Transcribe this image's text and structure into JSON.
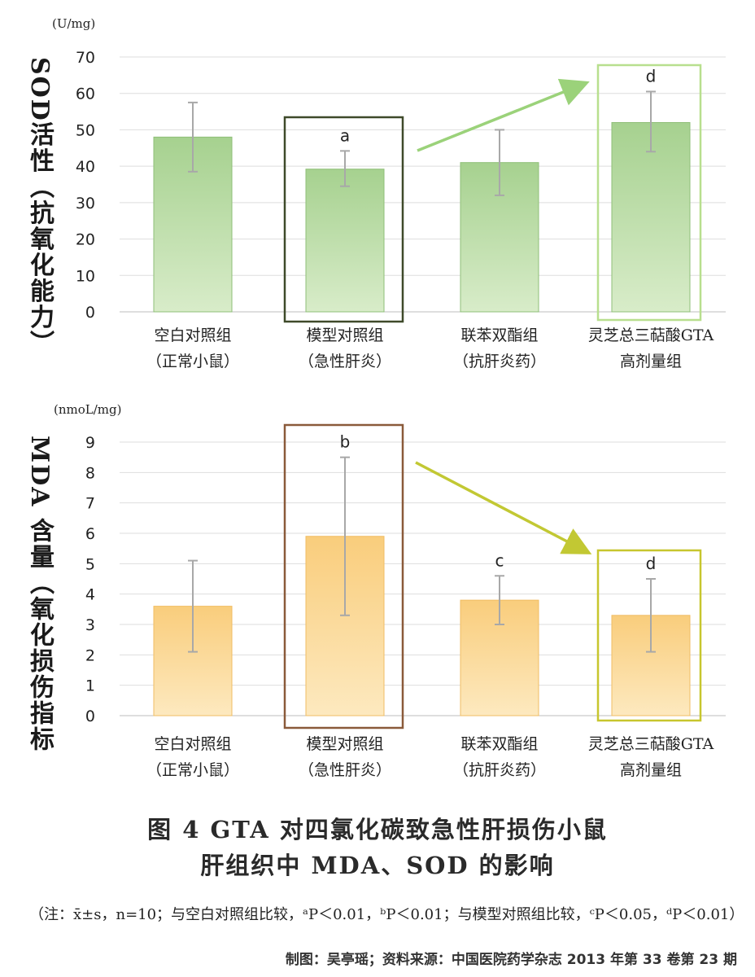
{
  "chart_data": [
    {
      "type": "bar",
      "ylabel": "SOD活性（抗氧化能力）",
      "unit": "(U/mg)",
      "ylim": [
        0,
        70
      ],
      "yticks": [
        "0",
        "10",
        "20",
        "30",
        "40",
        "50",
        "60",
        "70"
      ],
      "categories": [
        [
          "空白对照组",
          "（正常小鼠）"
        ],
        [
          "模型对照组",
          "（急性肝炎）"
        ],
        [
          "联苯双酯组",
          "（抗肝炎药）"
        ],
        [
          "灵芝总三萜酸GTA",
          "高剂量组"
        ]
      ],
      "values": [
        48,
        39.2,
        41,
        52
      ],
      "err_low": [
        38.5,
        34.5,
        32,
        44
      ],
      "err_high": [
        57.5,
        44.2,
        50,
        60.5
      ],
      "annotations": [
        "",
        "a",
        "",
        "d"
      ],
      "highlight": [
        1,
        3
      ],
      "grid": true,
      "colors": {
        "bar_top": "#a6d18f",
        "bar_bottom": "#d8ecc9",
        "bar_border": "#8fbf78",
        "box_model": "#3f4a2a",
        "box_gta": "#b8df8e",
        "arrow": "#9bd27a",
        "error": "#a8a8a8"
      }
    },
    {
      "type": "bar",
      "ylabel": "MDA 含量（氧化损伤指标",
      "unit": "(nmoL/mg)",
      "ylim": [
        0,
        9
      ],
      "yticks": [
        "0",
        "1",
        "2",
        "3",
        "4",
        "5",
        "6",
        "7",
        "8",
        "9"
      ],
      "categories": [
        [
          "空白对照组",
          "（正常小鼠）"
        ],
        [
          "模型对照组",
          "（急性肝炎）"
        ],
        [
          "联苯双酯组",
          "（抗肝炎药）"
        ],
        [
          "灵芝总三萜酸GTA",
          "高剂量组"
        ]
      ],
      "values": [
        3.6,
        5.9,
        3.8,
        3.3
      ],
      "err_low": [
        2.1,
        3.3,
        3.0,
        2.1
      ],
      "err_high": [
        5.1,
        8.5,
        4.6,
        4.5
      ],
      "annotations": [
        "",
        "b",
        "c",
        "d"
      ],
      "highlight": [
        1,
        3
      ],
      "grid": true,
      "colors": {
        "bar_top": "#f9cd7c",
        "bar_bottom": "#fde9bf",
        "bar_border": "#f0bd64",
        "box_model": "#8a5a3a",
        "box_gta": "#c7c62e",
        "arrow": "#c2c833",
        "error": "#a8a8a8"
      }
    }
  ],
  "figure_title_line1": "图 4  GTA 对四氯化碳致急性肝损伤小鼠",
  "figure_title_line2": "肝组织中 MDA、SOD 的影响",
  "note": "（注：x̄±s，n=10；与空白对照组比较，ᵃP＜0.01，ᵇP＜0.01；与模型对照组比较，ᶜP＜0.05，ᵈP＜0.01）",
  "credit": "制图：吴亭瑶；资料来源：中国医院药学杂志 2013 年第 33 卷第 23 期"
}
